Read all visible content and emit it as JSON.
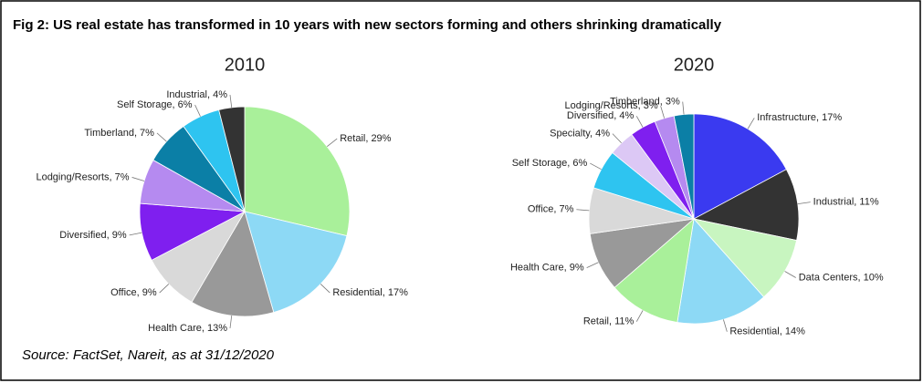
{
  "title": "Fig 2: US real estate has transformed in 10 years with new sectors forming and others shrinking dramatically",
  "source": "Source: FactSet, Nareit, as at 31/12/2020",
  "chart_data": [
    {
      "type": "pie",
      "title": "2010",
      "categories": [
        "Retail, 29%",
        "Residential, 17%",
        "Health Care, 13%",
        "Office, 9%",
        "Diversified, 9%",
        "Lodging/Resorts, 7%",
        "Timberland, 7%",
        "Self Storage, 6%",
        "Industrial, 4%"
      ],
      "values": [
        29,
        17,
        13,
        9,
        9,
        7,
        7,
        6,
        4
      ],
      "colors": [
        "#a9f09a",
        "#8dd9f5",
        "#999999",
        "#d9d9d9",
        "#7f1fef",
        "#b58af0",
        "#0b7fa6",
        "#2ec4f0",
        "#333333"
      ]
    },
    {
      "type": "pie",
      "title": "2020",
      "categories": [
        "Infrastructure, 17%",
        "Industrial, 11%",
        "Data Centers, 10%",
        "Residential, 14%",
        "Retail, 11%",
        "Health Care, 9%",
        "Office, 7%",
        "Self Storage, 6%",
        "Specialty, 4%",
        "Diversified, 4%",
        "Lodging/Resorts, 3%",
        "Timberland, 3%"
      ],
      "values": [
        17,
        11,
        10,
        14,
        11,
        9,
        7,
        6,
        4,
        4,
        3,
        3
      ],
      "colors": [
        "#3a3af0",
        "#333333",
        "#c8f5c0",
        "#8dd9f5",
        "#a9f09a",
        "#999999",
        "#d9d9d9",
        "#2ec4f0",
        "#dcc8f5",
        "#7f1fef",
        "#b58af0",
        "#0b7fa6"
      ]
    }
  ]
}
